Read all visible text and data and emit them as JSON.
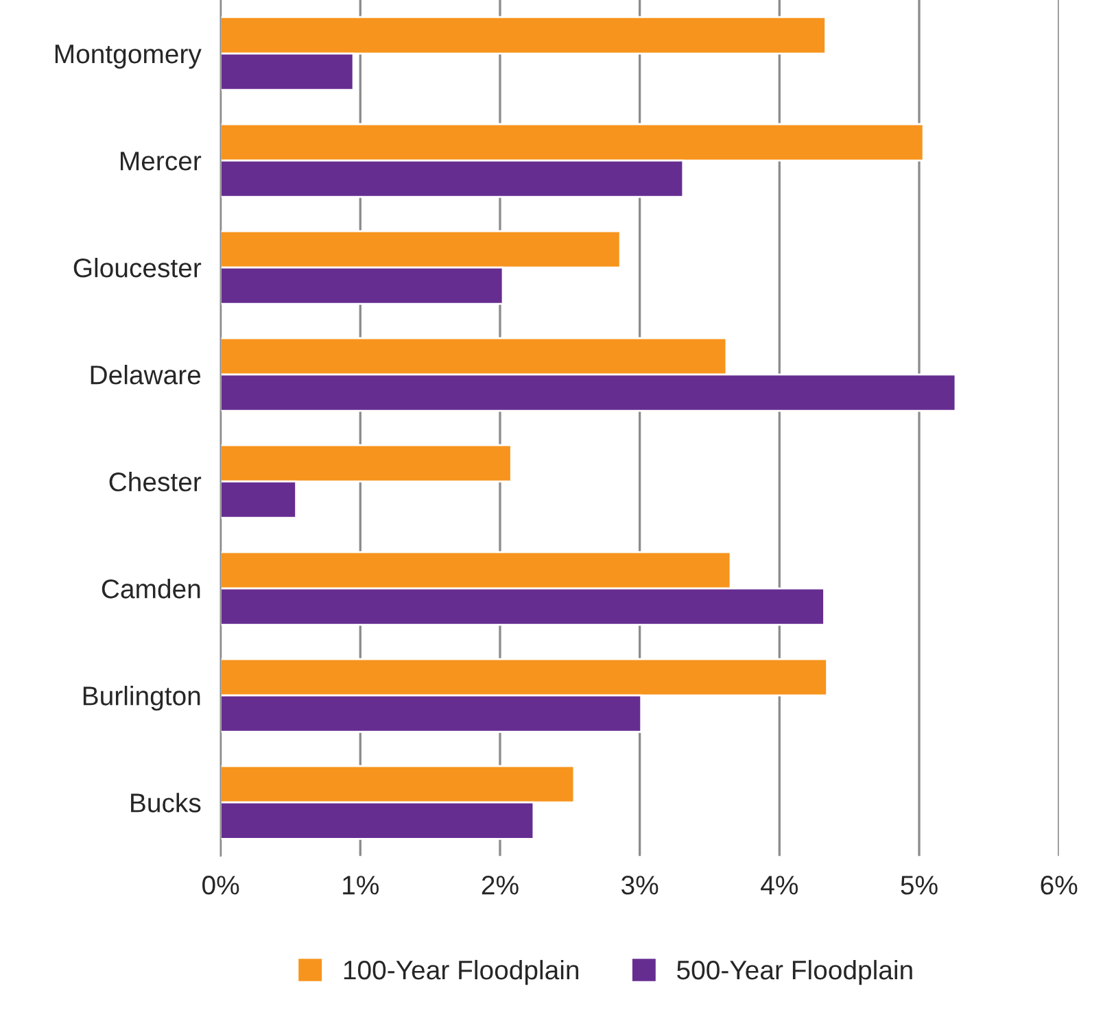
{
  "chart_data": {
    "type": "bar",
    "orientation": "horizontal",
    "categories": [
      "Montgomery",
      "Mercer",
      "Gloucester",
      "Delaware",
      "Chester",
      "Camden",
      "Burlington",
      "Bucks"
    ],
    "series": [
      {
        "name": "100-Year Floodplain",
        "color": "#f7941d",
        "values": [
          4.33,
          5.03,
          2.86,
          3.62,
          2.08,
          3.65,
          4.34,
          2.53
        ]
      },
      {
        "name": "500-Year Floodplain",
        "color": "#662d91",
        "values": [
          0.95,
          3.31,
          2.02,
          5.26,
          0.54,
          4.32,
          3.01,
          2.24
        ]
      }
    ],
    "xlim": [
      0,
      6
    ],
    "xticks": [
      {
        "value": 0,
        "label": "0%"
      },
      {
        "value": 1,
        "label": "1%"
      },
      {
        "value": 2,
        "label": "2%"
      },
      {
        "value": 3,
        "label": "3%"
      },
      {
        "value": 4,
        "label": "4%"
      },
      {
        "value": 5,
        "label": "5%"
      },
      {
        "value": 6,
        "label": "6%"
      }
    ],
    "grid": "x",
    "legend": "bottom"
  }
}
